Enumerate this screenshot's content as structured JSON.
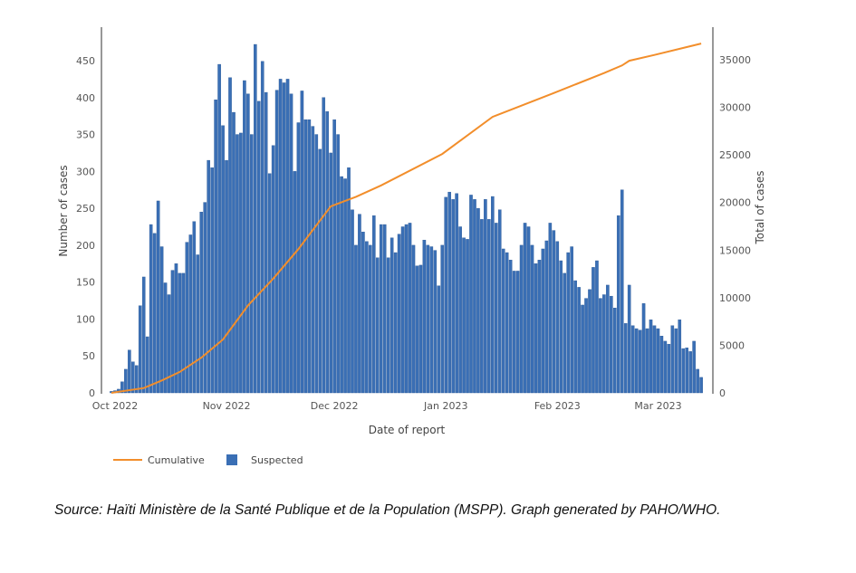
{
  "chart_data": {
    "type": "bar+line",
    "xlabel": "Date of report",
    "ylabel_left": "Number of cases",
    "ylabel_right": "Total of cases",
    "ylim_left": [
      0,
      480
    ],
    "ylim_right": [
      0,
      37600
    ],
    "yticks_left": [
      0,
      50,
      100,
      150,
      200,
      250,
      300,
      350,
      400,
      450
    ],
    "yticks_right": [
      0,
      5000,
      10000,
      15000,
      20000,
      25000,
      30000,
      35000
    ],
    "xticks": [
      {
        "date": "2022-10-01",
        "label": "Oct 2022"
      },
      {
        "date": "2022-11-01",
        "label": "Nov 2022"
      },
      {
        "date": "2022-12-01",
        "label": "Dec 2022"
      },
      {
        "date": "2023-01-01",
        "label": "Jan 2023"
      },
      {
        "date": "2023-02-01",
        "label": "Feb 2023"
      },
      {
        "date": "2023-03-01",
        "label": "Mar 2023"
      }
    ],
    "grid": false,
    "legend_position": "bottom-left",
    "colors": {
      "Cumulative": "#f28e2b",
      "Suspected": "#3a6fb5"
    },
    "series": [
      {
        "name": "Suspected",
        "type": "bar",
        "axis": "left",
        "daily_values_by_month": {
          "2022-10": [
            2,
            3,
            5,
            15,
            32,
            58,
            42,
            37,
            118,
            157,
            76,
            228,
            216,
            260,
            198,
            149,
            133,
            166,
            175,
            162,
            162,
            204,
            214,
            232,
            187,
            245,
            258,
            315,
            305,
            397,
            445
          ],
          "2022-11": [
            362,
            315,
            427,
            380,
            350,
            352,
            423,
            405,
            350,
            472,
            395,
            449,
            407,
            297,
            335,
            410,
            425,
            420,
            425,
            405,
            300,
            366,
            409,
            370,
            370,
            361,
            350,
            330,
            400,
            381
          ],
          "2022-12": [
            325,
            370,
            350,
            293,
            290,
            305,
            248,
            200,
            242,
            218,
            205,
            200,
            240,
            183,
            228,
            228,
            183,
            210,
            190,
            215,
            225,
            228,
            230,
            200,
            172,
            173,
            207,
            200,
            198,
            193,
            145
          ],
          "2023-01": [
            200,
            265,
            272,
            262,
            270,
            225,
            210,
            208,
            268,
            262,
            250,
            235,
            262,
            235,
            266,
            230,
            248,
            195,
            190,
            180,
            165,
            165,
            200,
            230,
            225,
            200,
            175,
            180,
            195,
            206,
            230
          ],
          "2023-02": [
            220,
            205,
            179,
            162,
            190,
            198,
            152,
            143,
            119,
            128,
            140,
            170,
            179,
            128,
            133,
            146,
            131,
            115,
            240,
            275,
            94,
            146,
            91,
            87,
            85,
            121,
            87,
            99
          ],
          "2023-03": [
            91,
            87,
            77,
            70,
            66,
            91,
            87,
            99,
            60,
            61,
            56,
            70,
            32,
            21
          ]
        }
      },
      {
        "name": "Cumulative",
        "type": "line",
        "axis": "right",
        "points": [
          [
            "2022-10-01",
            0
          ],
          [
            "2022-10-10",
            500
          ],
          [
            "2022-10-15",
            1300
          ],
          [
            "2022-10-20",
            2200
          ],
          [
            "2022-10-26",
            3700
          ],
          [
            "2022-11-01",
            5600
          ],
          [
            "2022-11-08",
            9200
          ],
          [
            "2022-11-15",
            12000
          ],
          [
            "2022-11-22",
            15100
          ],
          [
            "2022-12-01",
            19600
          ],
          [
            "2022-12-08",
            20600
          ],
          [
            "2022-12-15",
            21800
          ],
          [
            "2023-01-01",
            25100
          ],
          [
            "2023-01-15",
            29000
          ],
          [
            "2023-02-01",
            31500
          ],
          [
            "2023-02-15",
            33600
          ],
          [
            "2023-02-20",
            34400
          ],
          [
            "2023-02-22",
            34900
          ],
          [
            "2023-03-01",
            35500
          ],
          [
            "2023-03-14",
            36700
          ]
        ]
      }
    ]
  },
  "caption": "Source: Haïti Ministère de la Santé Publique et de la Population (MSPP). Graph generated by PAHO/WHO."
}
